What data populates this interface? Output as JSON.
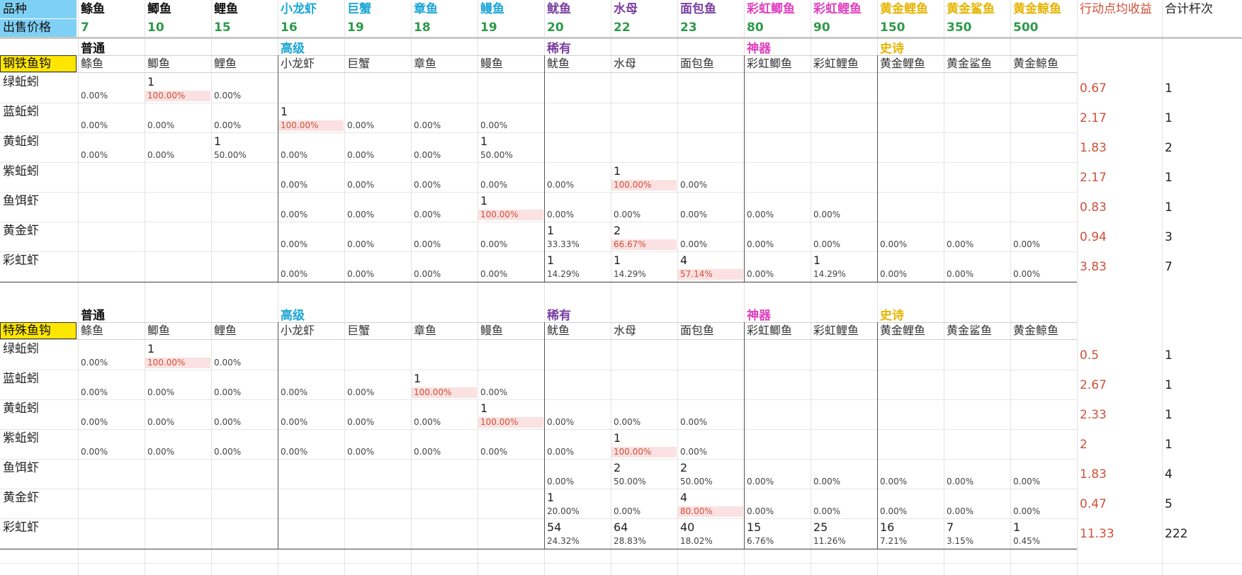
{
  "colors": {
    "普通": "#111111",
    "高级": "#1aa6d6",
    "稀有": "#7a3fa0",
    "神器": "#e040c0",
    "史诗": "#e6b400",
    "price": "#2e9a4a",
    "red": "#d0503a",
    "highlight": "#fbe1e1",
    "header_bg": "#7fd0f5",
    "hook_bg": "#ffe600"
  },
  "header": {
    "row1_label": "品种",
    "row2_label": "出售价格",
    "fish": [
      {
        "name": "鲦鱼",
        "price": "7",
        "tier": "普通"
      },
      {
        "name": "鲫鱼",
        "price": "10",
        "tier": "普通"
      },
      {
        "name": "鲤鱼",
        "price": "15",
        "tier": "普通"
      },
      {
        "name": "小龙虾",
        "price": "16",
        "tier": "高级"
      },
      {
        "name": "巨蟹",
        "price": "19",
        "tier": "高级"
      },
      {
        "name": "章鱼",
        "price": "18",
        "tier": "高级"
      },
      {
        "name": "鳗鱼",
        "price": "19",
        "tier": "高级"
      },
      {
        "name": "鱿鱼",
        "price": "20",
        "tier": "稀有"
      },
      {
        "name": "水母",
        "price": "22",
        "tier": "稀有"
      },
      {
        "name": "面包鱼",
        "price": "23",
        "tier": "稀有"
      },
      {
        "name": "彩虹鲫鱼",
        "price": "80",
        "tier": "神器"
      },
      {
        "name": "彩虹鲤鱼",
        "price": "90",
        "tier": "神器"
      },
      {
        "name": "黄金鲤鱼",
        "price": "150",
        "tier": "史诗"
      },
      {
        "name": "黄金鲨鱼",
        "price": "350",
        "tier": "史诗"
      },
      {
        "name": "黄金鲸鱼",
        "price": "500",
        "tier": "史诗"
      }
    ],
    "extra1": "行动点均收益",
    "extra2": "合计杆次"
  },
  "tiers": [
    {
      "name": "普通",
      "col": 0
    },
    {
      "name": "高级",
      "col": 3
    },
    {
      "name": "稀有",
      "col": 7
    },
    {
      "name": "神器",
      "col": 10
    },
    {
      "name": "史诗",
      "col": 12
    }
  ],
  "sections": [
    {
      "hook": "钢铁鱼钩",
      "rows": [
        {
          "bait": "绿蚯蚓",
          "counts": [
            "",
            "1",
            "",
            "",
            "",
            "",
            "",
            "",
            "",
            "",
            "",
            "",
            "",
            "",
            ""
          ],
          "pcts": [
            "0.00%",
            "100.00%",
            "0.00%",
            "",
            "",
            "",
            "",
            "",
            "",
            "",
            "",
            "",
            "",
            "",
            ""
          ],
          "avg": "0.67",
          "total": "1"
        },
        {
          "bait": "蓝蚯蚓",
          "counts": [
            "",
            "",
            "",
            "1",
            "",
            "",
            "",
            "",
            "",
            "",
            "",
            "",
            "",
            "",
            ""
          ],
          "pcts": [
            "0.00%",
            "0.00%",
            "0.00%",
            "100.00%",
            "0.00%",
            "0.00%",
            "0.00%",
            "",
            "",
            "",
            "",
            "",
            "",
            "",
            ""
          ],
          "avg": "2.17",
          "total": "1"
        },
        {
          "bait": "黄蚯蚓",
          "counts": [
            "",
            "",
            "1",
            "",
            "",
            "",
            "1",
            "",
            "",
            "",
            "",
            "",
            "",
            "",
            ""
          ],
          "pcts": [
            "0.00%",
            "0.00%",
            "50.00%",
            "0.00%",
            "0.00%",
            "0.00%",
            "50.00%",
            "",
            "",
            "",
            "",
            "",
            "",
            "",
            ""
          ],
          "avg": "1.83",
          "total": "2"
        },
        {
          "bait": "紫蚯蚓",
          "counts": [
            "",
            "",
            "",
            "",
            "",
            "",
            "",
            "",
            "1",
            "",
            "",
            "",
            "",
            "",
            ""
          ],
          "pcts": [
            "",
            "",
            "",
            "0.00%",
            "0.00%",
            "0.00%",
            "0.00%",
            "0.00%",
            "100.00%",
            "0.00%",
            "",
            "",
            "",
            "",
            ""
          ],
          "avg": "2.17",
          "total": "1"
        },
        {
          "bait": "鱼饵虾",
          "counts": [
            "",
            "",
            "",
            "",
            "",
            "",
            "1",
            "",
            "",
            "",
            "",
            "",
            "",
            "",
            ""
          ],
          "pcts": [
            "",
            "",
            "",
            "0.00%",
            "0.00%",
            "0.00%",
            "100.00%",
            "0.00%",
            "0.00%",
            "0.00%",
            "0.00%",
            "0.00%",
            "",
            "",
            ""
          ],
          "avg": "0.83",
          "total": "1"
        },
        {
          "bait": "黄金虾",
          "counts": [
            "",
            "",
            "",
            "",
            "",
            "",
            "",
            "1",
            "2",
            "",
            "",
            "",
            "",
            "",
            ""
          ],
          "pcts": [
            "",
            "",
            "",
            "0.00%",
            "0.00%",
            "0.00%",
            "0.00%",
            "33.33%",
            "66.67%",
            "0.00%",
            "0.00%",
            "0.00%",
            "0.00%",
            "0.00%",
            "0.00%"
          ],
          "avg": "0.94",
          "total": "3"
        },
        {
          "bait": "彩虹虾",
          "counts": [
            "",
            "",
            "",
            "",
            "",
            "",
            "",
            "1",
            "1",
            "4",
            "",
            "1",
            "",
            "",
            ""
          ],
          "pcts": [
            "",
            "",
            "",
            "0.00%",
            "0.00%",
            "0.00%",
            "0.00%",
            "14.29%",
            "14.29%",
            "57.14%",
            "0.00%",
            "14.29%",
            "0.00%",
            "0.00%",
            "0.00%"
          ],
          "avg": "3.83",
          "total": "7"
        }
      ]
    },
    {
      "hook": "特殊鱼钩",
      "rows": [
        {
          "bait": "绿蚯蚓",
          "counts": [
            "",
            "1",
            "",
            "",
            "",
            "",
            "",
            "",
            "",
            "",
            "",
            "",
            "",
            "",
            ""
          ],
          "pcts": [
            "0.00%",
            "100.00%",
            "0.00%",
            "",
            "",
            "",
            "",
            "",
            "",
            "",
            "",
            "",
            "",
            "",
            ""
          ],
          "avg": "0.5",
          "total": "1"
        },
        {
          "bait": "蓝蚯蚓",
          "counts": [
            "",
            "",
            "",
            "",
            "",
            "1",
            "",
            "",
            "",
            "",
            "",
            "",
            "",
            "",
            ""
          ],
          "pcts": [
            "0.00%",
            "0.00%",
            "0.00%",
            "0.00%",
            "0.00%",
            "100.00%",
            "0.00%",
            "",
            "",
            "",
            "",
            "",
            "",
            "",
            ""
          ],
          "avg": "2.67",
          "total": "1"
        },
        {
          "bait": "黄蚯蚓",
          "counts": [
            "",
            "",
            "",
            "",
            "",
            "",
            "1",
            "",
            "",
            "",
            "",
            "",
            "",
            "",
            ""
          ],
          "pcts": [
            "0.00%",
            "0.00%",
            "0.00%",
            "0.00%",
            "0.00%",
            "0.00%",
            "100.00%",
            "0.00%",
            "0.00%",
            "0.00%",
            "",
            "",
            "",
            "",
            ""
          ],
          "avg": "2.33",
          "total": "1"
        },
        {
          "bait": "紫蚯蚓",
          "counts": [
            "",
            "",
            "",
            "",
            "",
            "",
            "",
            "",
            "1",
            "",
            "",
            "",
            "",
            "",
            ""
          ],
          "pcts": [
            "0.00%",
            "0.00%",
            "0.00%",
            "0.00%",
            "0.00%",
            "0.00%",
            "0.00%",
            "0.00%",
            "100.00%",
            "0.00%",
            "",
            "",
            "",
            "",
            ""
          ],
          "avg": "2",
          "total": "1"
        },
        {
          "bait": "鱼饵虾",
          "counts": [
            "",
            "",
            "",
            "",
            "",
            "",
            "",
            "",
            "2",
            "2",
            "",
            "",
            "",
            "",
            ""
          ],
          "pcts": [
            "",
            "",
            "",
            "",
            "",
            "",
            "",
            "0.00%",
            "50.00%",
            "50.00%",
            "0.00%",
            "0.00%",
            "0.00%",
            "0.00%",
            "0.00%"
          ],
          "avg": "1.83",
          "total": "4"
        },
        {
          "bait": "黄金虾",
          "counts": [
            "",
            "",
            "",
            "",
            "",
            "",
            "",
            "1",
            "",
            "4",
            "",
            "",
            "",
            "",
            ""
          ],
          "pcts": [
            "",
            "",
            "",
            "",
            "",
            "",
            "",
            "20.00%",
            "0.00%",
            "80.00%",
            "0.00%",
            "0.00%",
            "0.00%",
            "0.00%",
            "0.00%"
          ],
          "avg": "0.47",
          "total": "5"
        },
        {
          "bait": "彩虹虾",
          "counts": [
            "",
            "",
            "",
            "",
            "",
            "",
            "",
            "54",
            "64",
            "40",
            "15",
            "25",
            "16",
            "7",
            "1"
          ],
          "pcts": [
            "",
            "",
            "",
            "",
            "",
            "",
            "",
            "24.32%",
            "28.83%",
            "18.02%",
            "6.76%",
            "11.26%",
            "7.21%",
            "3.15%",
            "0.45%"
          ],
          "avg": "11.33",
          "total": "222"
        }
      ]
    }
  ]
}
